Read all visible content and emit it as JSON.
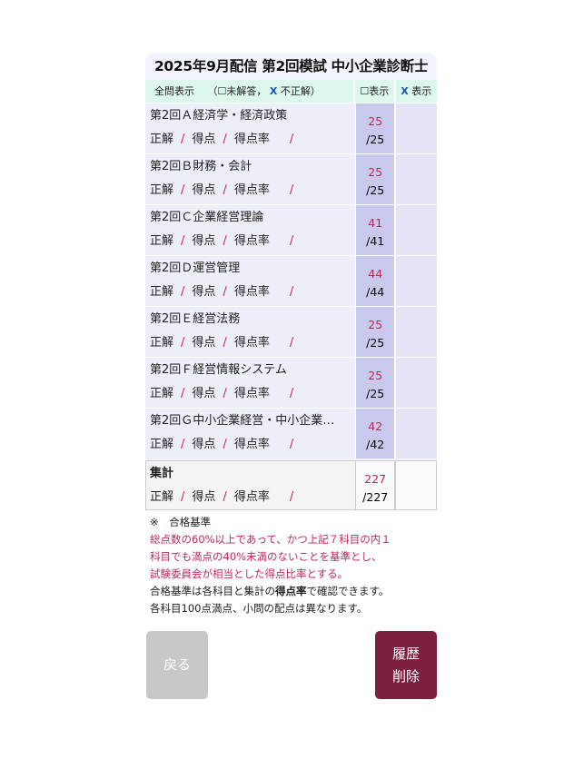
{
  "title": "2025年9月配信 第2回模試 中小企業診断士",
  "header": {
    "show_all": "全問表示",
    "filter_prefix": "（",
    "unanswered_box": "☐未解答，",
    "x_mark": "X",
    "incorrect": "不正解",
    "filter_suffix": "）",
    "col_unanswered": "☐表示",
    "col_x_mark": "X",
    "col_x_label": "表示"
  },
  "stat_labels": {
    "correct": "正解",
    "score": "得点",
    "rate": "得点率",
    "sep": "/"
  },
  "subjects": [
    {
      "name": "第2回Ａ経済学・経済政策",
      "count": "25",
      "total": "/25"
    },
    {
      "name": "第2回Ｂ財務・会計",
      "count": "25",
      "total": "/25"
    },
    {
      "name": "第2回Ｃ企業経営理論",
      "count": "41",
      "total": "/41"
    },
    {
      "name": "第2回Ｄ運営管理",
      "count": "44",
      "total": "/44"
    },
    {
      "name": "第2回Ｅ経営法務",
      "count": "25",
      "total": "/25"
    },
    {
      "name": "第2回Ｆ経営情報システム",
      "count": "25",
      "total": "/25"
    },
    {
      "name": "第2回Ｇ中小企業経営・中小企業…",
      "count": "42",
      "total": "/42"
    }
  ],
  "summary": {
    "name": "集計",
    "count": "227",
    "total": "/227"
  },
  "notes": {
    "heading": "※　合格基準",
    "criteria": [
      "総点数の60%以上であって、かつ上記７科目の内１",
      "科目でも満点の40%未満のないことを基準とし、",
      "試験委員会が相当とした得点比率とする。"
    ],
    "line4_a": "合格基準は各科目と集計の",
    "line4_b": "得点率",
    "line4_c": "で確認できます。",
    "line5": "各科目100点満点、小問の配点は異なります。"
  },
  "buttons": {
    "back": "戻る",
    "delete_line1": "履歴",
    "delete_line2": "削除"
  },
  "colors": {
    "accent": "#c0285a",
    "delete": "#7d2040",
    "header": "#dcf7ec"
  }
}
